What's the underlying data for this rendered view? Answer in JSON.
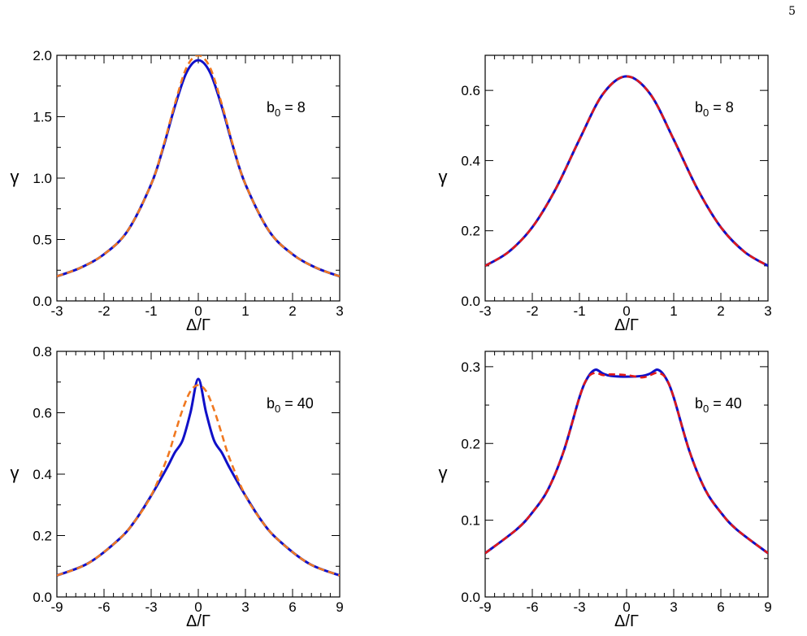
{
  "page_number": "5",
  "colors": {
    "solid": "#1010c8",
    "dashed_orange": "#f07820",
    "dashed_red": "#e01818"
  },
  "chart_data": [
    {
      "type": "line",
      "annotation": "b0 = 8",
      "xlabel": "Δ/Γ",
      "ylabel": "γ",
      "xlim": [
        -3,
        3
      ],
      "ylim": [
        0,
        2.0
      ],
      "xticks": [
        -3,
        -2,
        -1,
        0,
        1,
        2,
        3
      ],
      "xtick_labels": [
        "-3",
        "-2",
        "-1",
        "0",
        "1",
        "2",
        "3"
      ],
      "yticks": [
        0,
        0.5,
        1.0,
        1.5,
        2.0
      ],
      "ytick_labels": [
        "0.0",
        "0.5",
        "1.0",
        "1.5",
        "2.0"
      ],
      "series": [
        {
          "style": "solid",
          "color": "#1010c8",
          "x": [
            -3,
            -2.5,
            -2,
            -1.5,
            -1,
            -0.75,
            -0.5,
            -0.25,
            0,
            0.25,
            0.5,
            0.75,
            1,
            1.5,
            2,
            2.5,
            3
          ],
          "y": [
            0.2,
            0.27,
            0.38,
            0.57,
            0.95,
            1.24,
            1.58,
            1.86,
            1.96,
            1.86,
            1.58,
            1.24,
            0.95,
            0.57,
            0.38,
            0.27,
            0.2
          ]
        },
        {
          "style": "dashed",
          "color": "#f07820",
          "x": [
            -3,
            -2.5,
            -2,
            -1.5,
            -1,
            -0.75,
            -0.5,
            -0.25,
            0,
            0.25,
            0.5,
            0.75,
            1,
            1.5,
            2,
            2.5,
            3
          ],
          "y": [
            0.2,
            0.27,
            0.38,
            0.57,
            0.95,
            1.25,
            1.6,
            1.9,
            2.0,
            1.9,
            1.6,
            1.25,
            0.95,
            0.57,
            0.38,
            0.27,
            0.2
          ]
        }
      ]
    },
    {
      "type": "line",
      "annotation": "b0 = 8",
      "xlabel": "Δ/Γ",
      "ylabel": "γ",
      "xlim": [
        -3,
        3
      ],
      "ylim": [
        0,
        0.7
      ],
      "xticks": [
        -3,
        -2,
        -1,
        0,
        1,
        2,
        3
      ],
      "xtick_labels": [
        "-3",
        "-2",
        "-1",
        "0",
        "1",
        "2",
        "3"
      ],
      "yticks": [
        0,
        0.2,
        0.4,
        0.6
      ],
      "ytick_labels": [
        "0.0",
        "0.2",
        "0.4",
        "0.6"
      ],
      "series": [
        {
          "style": "solid",
          "color": "#1010c8",
          "x": [
            -3,
            -2.5,
            -2,
            -1.5,
            -1,
            -0.5,
            0,
            0.5,
            1,
            1.5,
            2,
            2.5,
            3
          ],
          "y": [
            0.1,
            0.14,
            0.21,
            0.32,
            0.46,
            0.59,
            0.64,
            0.59,
            0.46,
            0.32,
            0.21,
            0.14,
            0.1
          ]
        },
        {
          "style": "dashed",
          "color": "#e01818",
          "x": [
            -3,
            -2.5,
            -2,
            -1.5,
            -1,
            -0.5,
            0,
            0.5,
            1,
            1.5,
            2,
            2.5,
            3
          ],
          "y": [
            0.1,
            0.14,
            0.21,
            0.32,
            0.46,
            0.59,
            0.64,
            0.59,
            0.46,
            0.32,
            0.21,
            0.14,
            0.1
          ]
        }
      ]
    },
    {
      "type": "line",
      "annotation": "b0 = 40",
      "xlabel": "Δ/Γ",
      "ylabel": "γ",
      "xlim": [
        -9,
        9
      ],
      "ylim": [
        0,
        0.8
      ],
      "xticks": [
        -9,
        -6,
        -3,
        0,
        3,
        6,
        9
      ],
      "xtick_labels": [
        "-9",
        "-6",
        "-3",
        "0",
        "3",
        "6",
        "9"
      ],
      "yticks": [
        0,
        0.2,
        0.4,
        0.6,
        0.8
      ],
      "ytick_labels": [
        "0.0",
        "0.2",
        "0.4",
        "0.6",
        "0.8"
      ],
      "series": [
        {
          "style": "solid",
          "color": "#1010c8",
          "x": [
            -9,
            -7,
            -5,
            -4,
            -3,
            -2,
            -1.5,
            -1,
            -0.5,
            0,
            0.5,
            1,
            1.5,
            2,
            3,
            4,
            5,
            7,
            9
          ],
          "y": [
            0.07,
            0.11,
            0.19,
            0.25,
            0.33,
            0.42,
            0.47,
            0.51,
            0.6,
            0.71,
            0.6,
            0.51,
            0.47,
            0.42,
            0.33,
            0.25,
            0.19,
            0.11,
            0.07
          ]
        },
        {
          "style": "dashed",
          "color": "#f07820",
          "x": [
            -9,
            -7,
            -5,
            -4,
            -3,
            -2,
            -1.5,
            -1,
            -0.5,
            0,
            0.5,
            1,
            1.5,
            2,
            3,
            4,
            5,
            7,
            9
          ],
          "y": [
            0.07,
            0.11,
            0.19,
            0.25,
            0.33,
            0.45,
            0.53,
            0.61,
            0.67,
            0.69,
            0.67,
            0.61,
            0.53,
            0.45,
            0.33,
            0.25,
            0.19,
            0.11,
            0.07
          ]
        }
      ]
    },
    {
      "type": "line",
      "annotation": "b0 = 40",
      "xlabel": "Δ/Γ",
      "ylabel": "γ",
      "xlim": [
        -9,
        9
      ],
      "ylim": [
        0,
        0.32
      ],
      "xticks": [
        -9,
        -6,
        -3,
        0,
        3,
        6,
        9
      ],
      "xtick_labels": [
        "-9",
        "-6",
        "-3",
        "0",
        "3",
        "6",
        "9"
      ],
      "yticks": [
        0,
        0.1,
        0.2,
        0.3
      ],
      "ytick_labels": [
        "0.0",
        "0.1",
        "0.2",
        "0.3"
      ],
      "series": [
        {
          "style": "solid",
          "color": "#1010c8",
          "x": [
            -9,
            -7,
            -6,
            -5,
            -4,
            -3,
            -2.5,
            -2,
            -1.5,
            -1,
            0,
            1,
            1.5,
            2,
            2.5,
            3,
            4,
            5,
            6,
            7,
            9
          ],
          "y": [
            0.057,
            0.088,
            0.11,
            0.14,
            0.19,
            0.26,
            0.285,
            0.296,
            0.291,
            0.288,
            0.287,
            0.288,
            0.291,
            0.296,
            0.285,
            0.26,
            0.19,
            0.14,
            0.11,
            0.088,
            0.057
          ]
        },
        {
          "style": "dashed",
          "color": "#e01818",
          "x": [
            -9,
            -7,
            -6,
            -5,
            -4,
            -3,
            -2.5,
            -2,
            -1.5,
            -1,
            0,
            1,
            1.5,
            2,
            2.5,
            3,
            4,
            5,
            6,
            7,
            9
          ],
          "y": [
            0.057,
            0.088,
            0.11,
            0.14,
            0.19,
            0.26,
            0.285,
            0.292,
            0.289,
            0.29,
            0.289,
            0.286,
            0.289,
            0.292,
            0.285,
            0.26,
            0.19,
            0.14,
            0.11,
            0.088,
            0.057
          ]
        }
      ]
    }
  ]
}
